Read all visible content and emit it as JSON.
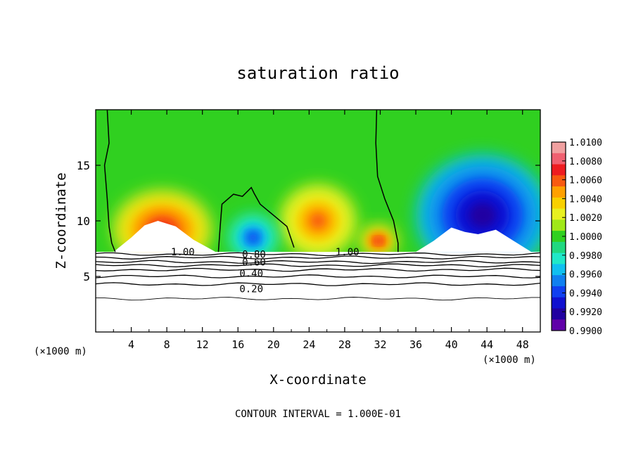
{
  "chart_data": {
    "type": "heatmap",
    "title": "saturation ratio",
    "xlabel": "X-coordinate",
    "ylabel": "Z-coordinate",
    "x_unit_left": "(×1000 m)",
    "x_unit_right": "(×1000 m)",
    "xlim": [
      0,
      50
    ],
    "ylim": [
      0,
      20
    ],
    "x_ticks": [
      4,
      8,
      12,
      16,
      20,
      24,
      28,
      32,
      36,
      40,
      44,
      48
    ],
    "x_tick_labels": [
      "4",
      "8",
      "12",
      "16",
      "20",
      "24",
      "28",
      "32",
      "36",
      "40",
      "44",
      "48"
    ],
    "y_ticks": [
      5,
      10,
      15
    ],
    "y_tick_labels": [
      "5",
      "10",
      "15"
    ],
    "footer": "CONTOUR INTERVAL = 1.000E-01",
    "colorbar": {
      "min": 0.99,
      "max": 1.01,
      "labels": [
        "1.0100",
        "1.0080",
        "1.0060",
        "1.0040",
        "1.0020",
        "1.0000",
        "0.9980",
        "0.9960",
        "0.9940",
        "0.9920",
        "0.9900"
      ],
      "colors": [
        "#f0a0a0",
        "#f06070",
        "#ee1c20",
        "#f85a10",
        "#ffa000",
        "#f8d000",
        "#e8f020",
        "#a0e818",
        "#30d020",
        "#20d880",
        "#20e8c8",
        "#10c0f0",
        "#1080f0",
        "#1040f0",
        "#1010d0",
        "#2000a0",
        "#6000a8"
      ]
    },
    "contour_labels": [
      {
        "text": "1.00",
        "x": 9.8,
        "z": 7.2
      },
      {
        "text": "0.80",
        "x": 17.8,
        "z": 7.0
      },
      {
        "text": "0.60",
        "x": 17.8,
        "z": 6.3
      },
      {
        "text": "0.40",
        "x": 17.5,
        "z": 5.3
      },
      {
        "text": "0.20",
        "x": 17.5,
        "z": 3.9
      },
      {
        "text": "1.00",
        "x": 28.3,
        "z": 7.2
      }
    ],
    "field_blobs": [
      {
        "name": "dry-region-1",
        "x": 7.5,
        "z": 9.2,
        "rx": 5.5,
        "rz": 3.5,
        "peak": 1.008
      },
      {
        "name": "moist-center",
        "x": 25,
        "z": 10,
        "rx": 4.2,
        "rz": 3.2,
        "peak": 1.006
      },
      {
        "name": "peak-32",
        "x": 31.8,
        "z": 8.2,
        "rx": 2.0,
        "rz": 1.3,
        "peak": 1.007
      },
      {
        "name": "dry-right",
        "x": 43.5,
        "z": 10.5,
        "rx": 7.5,
        "rz": 5.5,
        "peak": 0.991
      },
      {
        "name": "dry-mid",
        "x": 17.7,
        "z": 8.5,
        "rx": 2.6,
        "rz": 2.0,
        "peak": 0.994
      }
    ]
  }
}
